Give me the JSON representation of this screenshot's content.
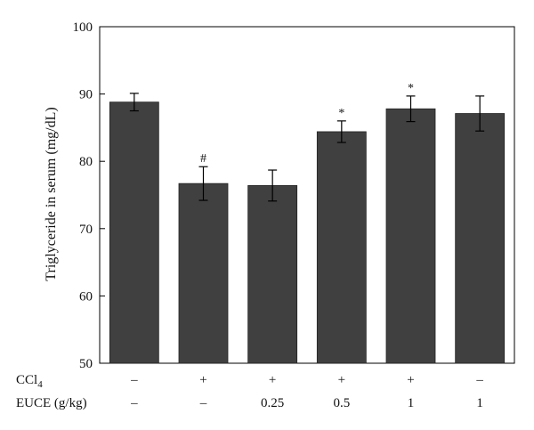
{
  "chart_data": {
    "type": "bar",
    "title": "",
    "ylabel": "Triglyceride in serum (mg/dL)",
    "xlabel": "",
    "ylim": [
      50,
      100
    ],
    "yticks": [
      50,
      60,
      70,
      80,
      90,
      100
    ],
    "bar_color": "#404040",
    "values": [
      88.8,
      76.7,
      76.4,
      84.4,
      87.8,
      87.1
    ],
    "errors": [
      1.3,
      2.5,
      2.3,
      1.6,
      1.9,
      2.6
    ],
    "significance": [
      "",
      "#",
      "",
      "*",
      "*",
      ""
    ],
    "treatment_rows": [
      {
        "label": "CCl",
        "label_sub": "4",
        "values": [
          "–",
          "+",
          "+",
          "+",
          "+",
          "–"
        ]
      },
      {
        "label": "EUCE (g/kg)",
        "label_sub": "",
        "values": [
          "–",
          "–",
          "0.25",
          "0.5",
          "1",
          "1"
        ]
      }
    ]
  }
}
